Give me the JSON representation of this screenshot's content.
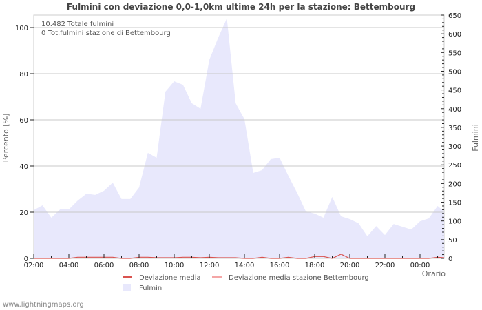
{
  "chart_data": {
    "type": "area",
    "title": "Fulmini con deviazione 0,0-1,0km ultime 24h per la stazione: Bettembourg",
    "xlabel": "Orario",
    "ylabel": "Percento   [%]",
    "ylabel_right": "Fulmini",
    "ylim": [
      0,
      105
    ],
    "ylim_right": [
      0,
      650
    ],
    "yticks": [
      0,
      20,
      40,
      60,
      80,
      100
    ],
    "yticks_right": [
      0,
      50,
      100,
      150,
      200,
      250,
      300,
      350,
      400,
      450,
      500,
      550,
      600,
      650
    ],
    "xtick_labels": [
      "02:00",
      "04:00",
      "06:00",
      "08:00",
      "10:00",
      "12:00",
      "14:00",
      "16:00",
      "18:00",
      "20:00",
      "22:00",
      "00:00"
    ],
    "grid": true,
    "annotations": [
      "10.482 Totale fulmini",
      "0 Tot.fulmini stazione di Bettembourg"
    ],
    "legend": [
      {
        "label": "Deviazione media",
        "color": "#d9534f",
        "kind": "line"
      },
      {
        "label": "Deviazione media stazione Bettembourg",
        "color": "#f4a6a6",
        "kind": "line"
      },
      {
        "label": "Fulmini",
        "color": "#e8e8fc",
        "kind": "area"
      }
    ],
    "x": [
      "02:00",
      "02:30",
      "03:00",
      "03:30",
      "04:00",
      "04:30",
      "05:00",
      "05:30",
      "06:00",
      "06:30",
      "07:00",
      "07:30",
      "08:00",
      "08:30",
      "09:00",
      "09:30",
      "10:00",
      "10:30",
      "11:00",
      "11:30",
      "12:00",
      "12:30",
      "13:00",
      "13:30",
      "14:00",
      "14:30",
      "15:00",
      "15:30",
      "16:00",
      "16:30",
      "17:00",
      "17:30",
      "18:00",
      "18:30",
      "19:00",
      "19:30",
      "20:00",
      "20:30",
      "21:00",
      "21:30",
      "22:00",
      "22:30",
      "23:00",
      "23:30",
      "00:00",
      "00:30",
      "01:00",
      "01:15"
    ],
    "series": [
      {
        "name": "Fulmini",
        "unit": "percent",
        "values": [
          20.9,
          23,
          17.6,
          21.2,
          21.2,
          25,
          28,
          27.5,
          29.3,
          32.8,
          25.7,
          25.7,
          30.7,
          45.7,
          43.6,
          72.2,
          76.7,
          75.2,
          67.2,
          64.8,
          86,
          95.5,
          104,
          67.2,
          60.3,
          37,
          38.2,
          43,
          43.6,
          35.8,
          28.4,
          20.3,
          19.4,
          17.6,
          26.6,
          18.2,
          17,
          15.2,
          9.6,
          14,
          10.1,
          14.9,
          13.7,
          12.5,
          16.1,
          17.3,
          22.7,
          20.3
        ]
      },
      {
        "name": "Deviazione media",
        "unit": "percent",
        "values": [
          0,
          0,
          0,
          0,
          0,
          0.5,
          0.5,
          0.5,
          0.5,
          0.5,
          0,
          0,
          0.5,
          0.5,
          0.3,
          0.3,
          0.3,
          0.5,
          0.5,
          0.3,
          0.5,
          0.3,
          0.3,
          0.3,
          0,
          0,
          0.5,
          0,
          0,
          0.5,
          0,
          0,
          0.8,
          0.8,
          0,
          1.8,
          0,
          0,
          0,
          0,
          0,
          0,
          0,
          0,
          0,
          0,
          0.5,
          0.3
        ]
      },
      {
        "name": "Deviazione media stazione Bettembourg",
        "unit": "percent",
        "values": []
      }
    ]
  },
  "footer": "www.lightningmaps.org"
}
